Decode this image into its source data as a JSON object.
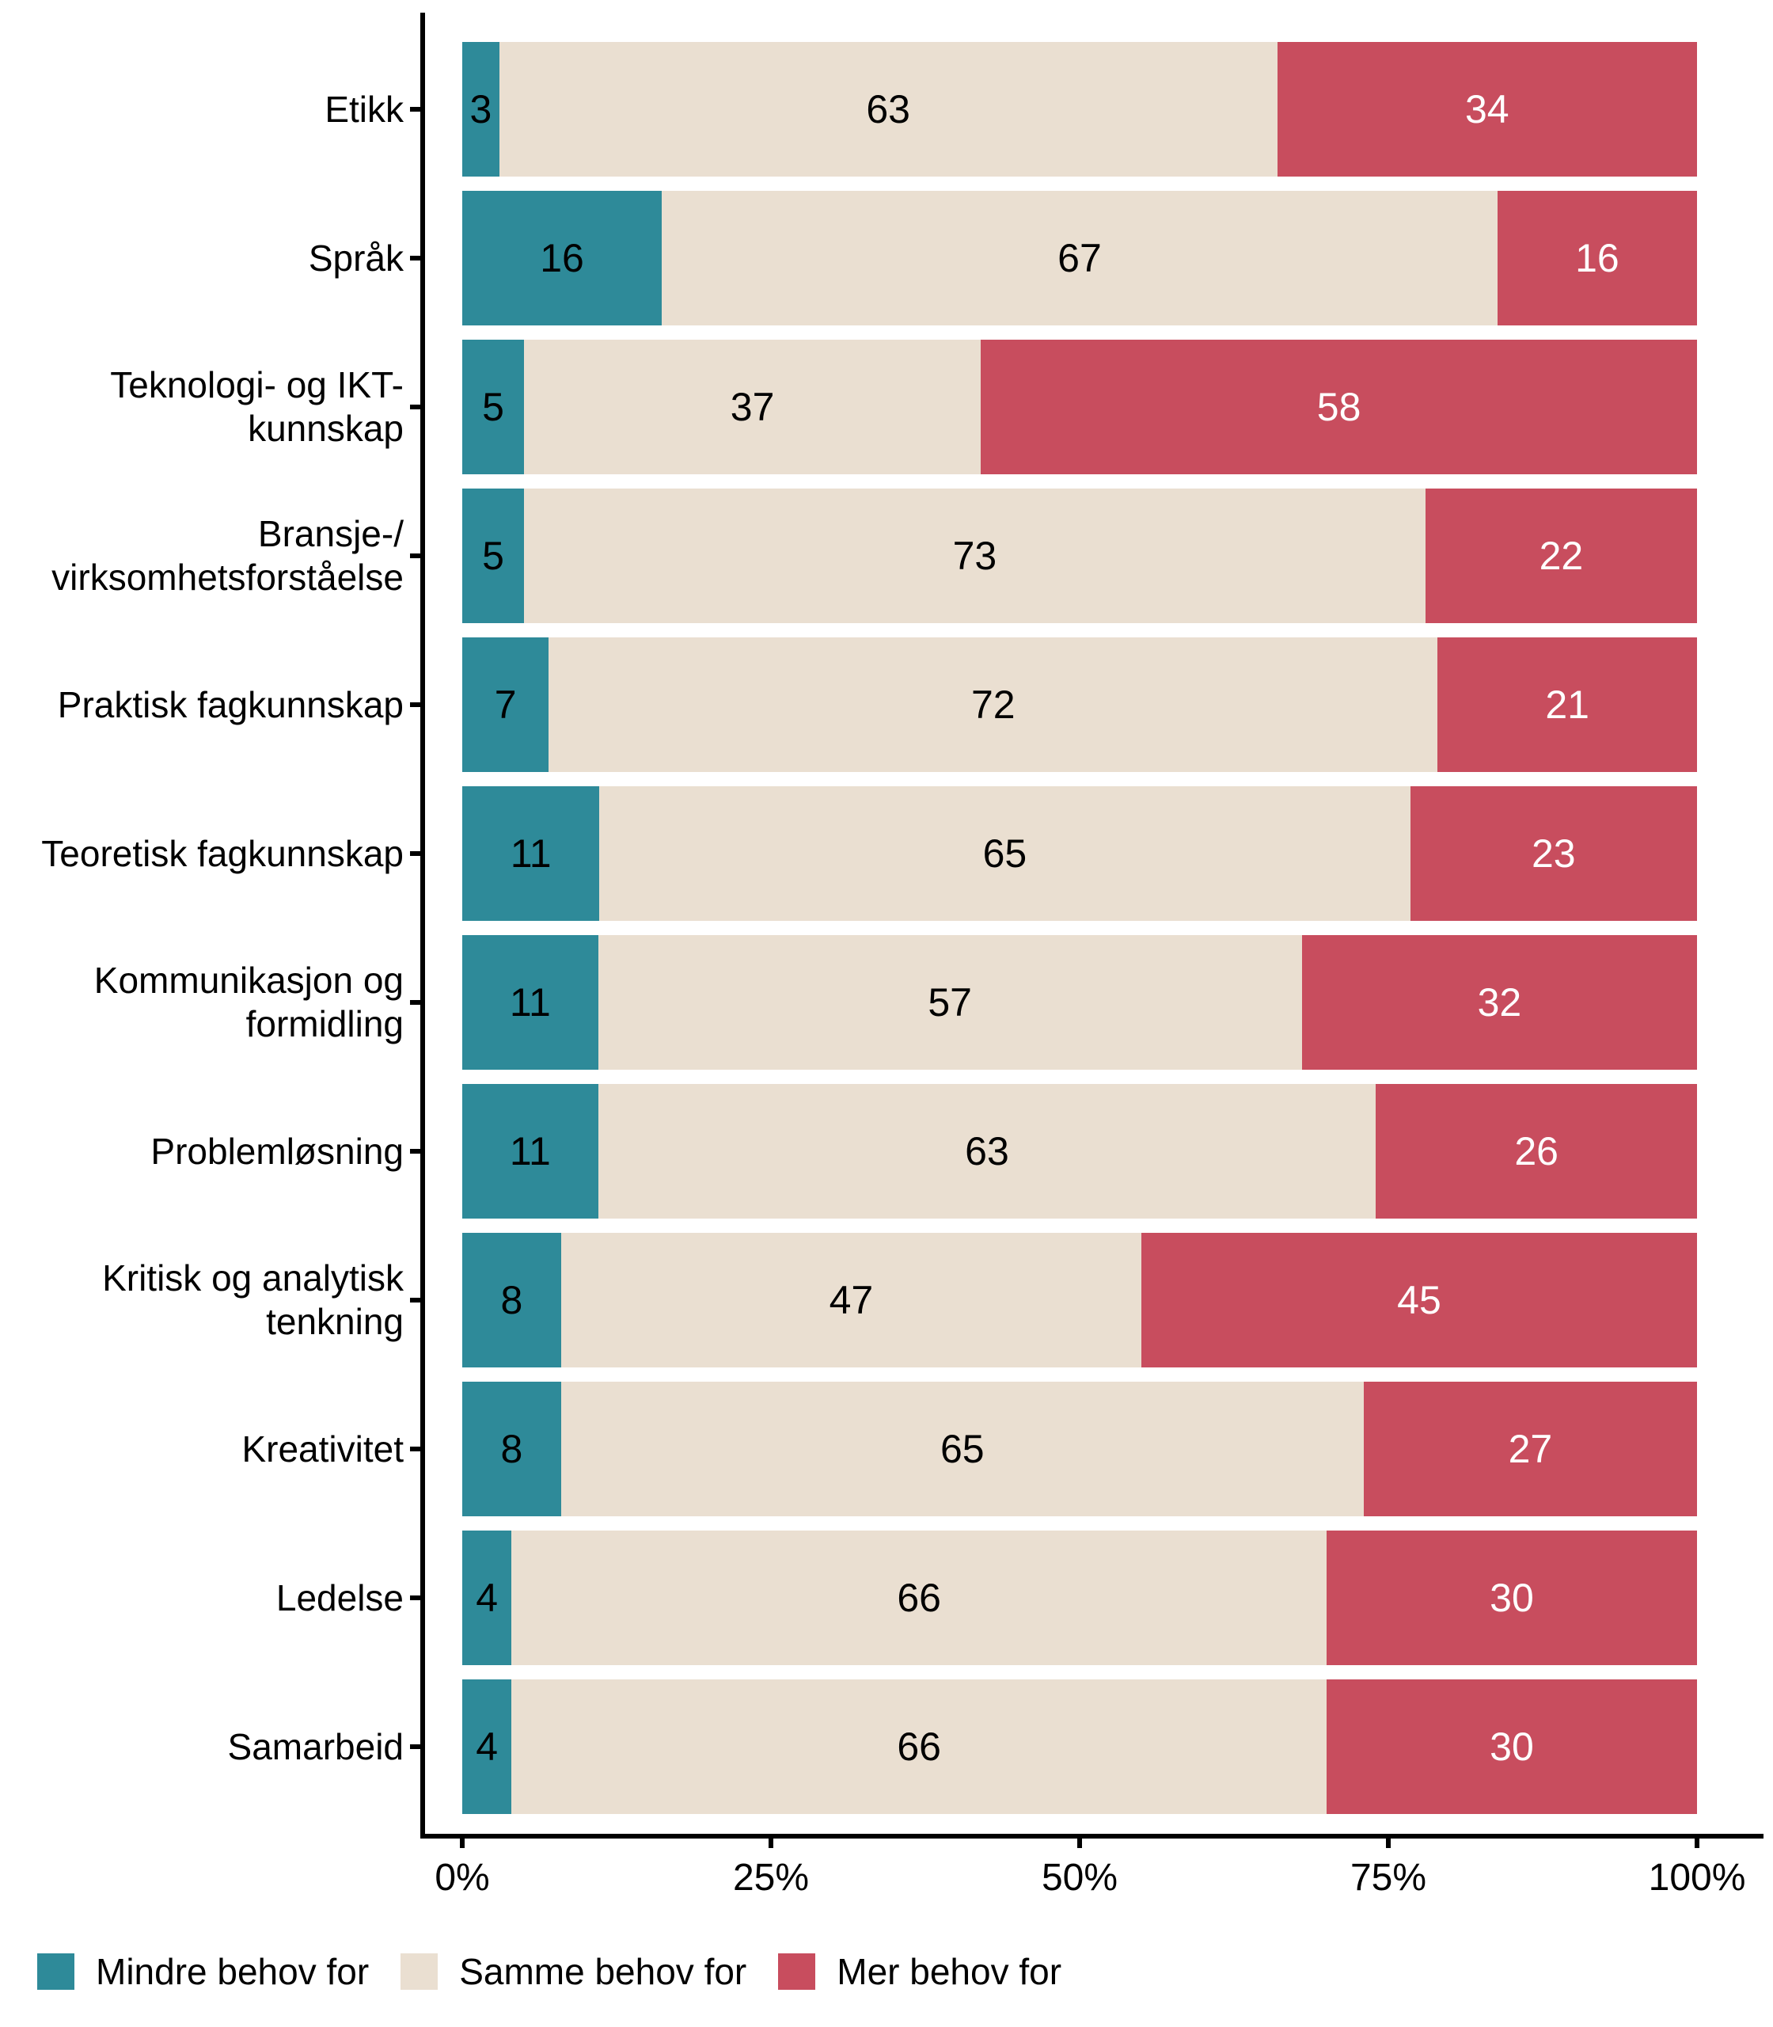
{
  "chart_data": {
    "type": "bar",
    "orientation": "horizontal",
    "stacking": "fill",
    "unit": "percent",
    "grid": false,
    "legend_position": "bottom-left",
    "categories": [
      "Etikk",
      "Språk",
      "Teknologi- og IKT-\nkunnskap",
      "Bransje-/\nvirksomhetsforståelse",
      "Praktisk fagkunnskap",
      "Teoretisk fagkunnskap",
      "Kommunikasjon og\nformidling",
      "Problemløsning",
      "Kritisk og analytisk\ntenkning",
      "Kreativitet",
      "Ledelse",
      "Samarbeid"
    ],
    "series": [
      {
        "name": "Mindre behov for",
        "color": "#2E8A99",
        "label_color": "#000000",
        "values": [
          3,
          16,
          5,
          5,
          7,
          11,
          11,
          11,
          8,
          8,
          4,
          4
        ]
      },
      {
        "name": "Samme behov for",
        "color": "#EADFD1",
        "label_color": "#000000",
        "values": [
          63,
          67,
          37,
          73,
          72,
          65,
          57,
          63,
          47,
          65,
          66,
          66
        ]
      },
      {
        "name": "Mer behov for",
        "color": "#C84D5E",
        "label_color": "#FFFFFF",
        "values": [
          34,
          16,
          58,
          22,
          21,
          23,
          32,
          26,
          45,
          27,
          30,
          30
        ]
      }
    ],
    "xlim": [
      0,
      100
    ],
    "x_ticks": [
      {
        "label": "0%",
        "value": 0
      },
      {
        "label": "25%",
        "value": 25
      },
      {
        "label": "50%",
        "value": 50
      },
      {
        "label": "75%",
        "value": 75
      },
      {
        "label": "100%",
        "value": 100
      }
    ]
  },
  "colors": {
    "axis": "#000000",
    "background": "#FFFFFF",
    "text": "#000000"
  }
}
